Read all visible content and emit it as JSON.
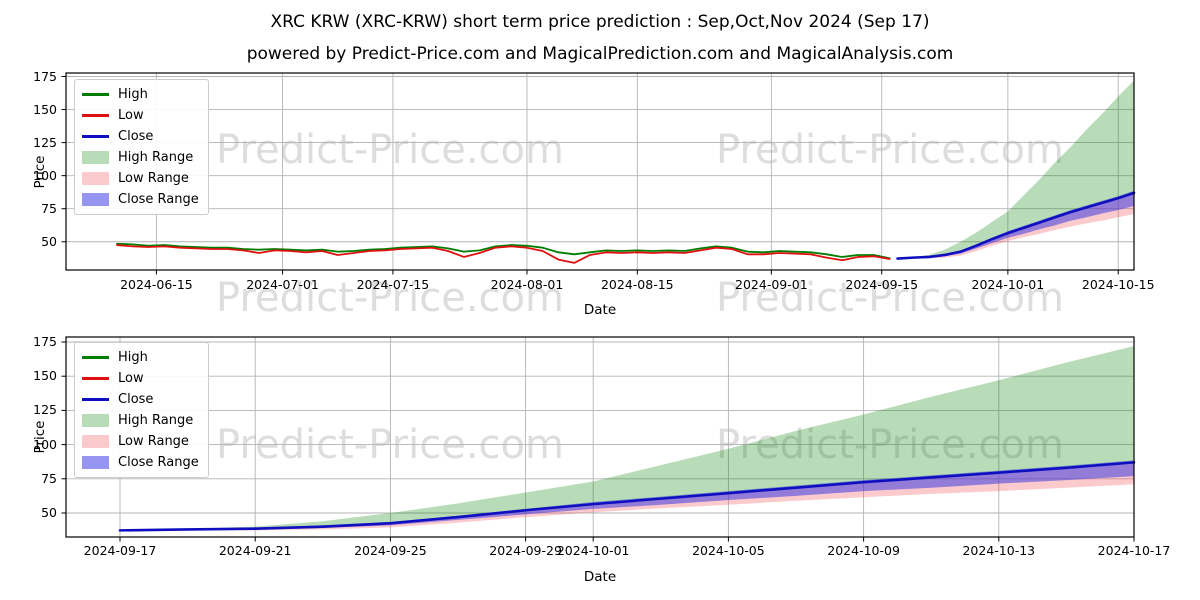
{
  "header": {
    "title": "XRC KRW (XRC-KRW) short term price prediction : Sep,Oct,Nov 2024 (Sep 17)",
    "subtitle": "powered by Predict-Price.com and MagicalPrediction.com and MagicalAnalysis.com"
  },
  "watermark": {
    "text": "Predict-Price.com"
  },
  "colors": {
    "high_line": "#007d00",
    "low_line": "#e01010",
    "close_line": "#0f0fc0",
    "high_range_fill": "rgba(0,128,0,0.28)",
    "low_range_fill": "rgba(243,80,90,0.30)",
    "close_range_fill": "rgba(43,43,228,0.50)",
    "grid": "#b3b3b3",
    "spine": "#000000",
    "background": "#ffffff"
  },
  "chart_data": [
    {
      "type": "line",
      "title": "",
      "xlabel": "Date",
      "ylabel": "Price",
      "grid": true,
      "legend_position": "upper left",
      "yticks": [
        50,
        75,
        100,
        125,
        150,
        175
      ],
      "ylim": [
        28.6,
        177.6
      ],
      "xticks": {
        "labels": [
          "2024-06-15",
          "2024-07-01",
          "2024-07-15",
          "2024-08-01",
          "2024-08-15",
          "2024-09-01",
          "2024-09-15",
          "2024-10-01",
          "2024-10-15"
        ],
        "pos": [
          5,
          21,
          35,
          52,
          66,
          83,
          97,
          113,
          127
        ]
      },
      "x_unit": "days since 2024-06-10",
      "series": [
        {
          "name": "High",
          "color_key": "high_line",
          "width": 1.8,
          "x": [
            0,
            2,
            4,
            6,
            8,
            10,
            12,
            14,
            16,
            18,
            20,
            22,
            24,
            26,
            28,
            30,
            32,
            34,
            36,
            38,
            40,
            42,
            44,
            46,
            48,
            50,
            52,
            54,
            56,
            58,
            60,
            62,
            64,
            66,
            68,
            70,
            72,
            74,
            76,
            78,
            80,
            82,
            84,
            86,
            88,
            90,
            92,
            94,
            96,
            98
          ],
          "y": [
            48.5,
            48.0,
            47.0,
            47.5,
            46.5,
            46.0,
            45.5,
            45.5,
            44.5,
            44.0,
            44.5,
            44.0,
            43.5,
            44.0,
            42.5,
            43.0,
            44.0,
            44.5,
            45.5,
            46.0,
            46.5,
            45.0,
            42.5,
            43.5,
            46.5,
            47.5,
            47.0,
            45.5,
            42.0,
            40.5,
            42.0,
            43.5,
            43.0,
            43.5,
            43.0,
            43.5,
            43.0,
            45.0,
            46.5,
            45.5,
            42.5,
            42.0,
            43.0,
            42.5,
            42.0,
            40.5,
            38.5,
            40.0,
            40.0,
            37.5
          ]
        },
        {
          "name": "Low",
          "color_key": "low_line",
          "width": 1.8,
          "x": [
            0,
            2,
            4,
            6,
            8,
            10,
            12,
            14,
            16,
            18,
            20,
            22,
            24,
            26,
            28,
            30,
            32,
            34,
            36,
            38,
            40,
            42,
            44,
            46,
            48,
            50,
            52,
            54,
            56,
            58,
            60,
            62,
            64,
            66,
            68,
            70,
            72,
            74,
            76,
            78,
            80,
            82,
            84,
            86,
            88,
            90,
            92,
            94,
            96,
            98
          ],
          "y": [
            47.5,
            46.5,
            46.0,
            46.5,
            45.5,
            45.0,
            44.5,
            44.5,
            43.5,
            41.5,
            43.5,
            43.0,
            42.0,
            43.0,
            40.0,
            41.5,
            43.0,
            43.5,
            44.5,
            45.0,
            45.5,
            43.0,
            38.5,
            41.5,
            45.5,
            46.5,
            45.5,
            43.0,
            36.5,
            34.0,
            40.0,
            42.0,
            41.5,
            42.0,
            41.5,
            42.0,
            41.5,
            43.5,
            45.5,
            44.5,
            40.5,
            40.5,
            41.5,
            41.0,
            40.5,
            38.0,
            36.0,
            38.5,
            39.0,
            37.0
          ]
        },
        {
          "name": "Close",
          "color_key": "close_line",
          "width": 2.6,
          "x": [
            99,
            101,
            103,
            105,
            107,
            109,
            111,
            113,
            115,
            117,
            119,
            121,
            123,
            125,
            127,
            129
          ],
          "y": [
            37.3,
            38.0,
            38.5,
            40.0,
            42.5,
            47.0,
            52.0,
            56.5,
            60.5,
            64.5,
            68.5,
            72.5,
            76.0,
            79.5,
            83.0,
            87.0
          ]
        }
      ],
      "bands": [
        {
          "name": "High Range",
          "fill_key": "high_range_fill",
          "x": [
            99,
            101,
            103,
            105,
            107,
            109,
            111,
            113,
            115,
            117,
            119,
            121,
            123,
            125,
            127,
            129
          ],
          "top": [
            37.3,
            38.5,
            40.0,
            44.0,
            50.0,
            57.0,
            65.0,
            73.0,
            85.0,
            97.0,
            110.0,
            122.0,
            135.0,
            147.0,
            160.0,
            172.0
          ],
          "bottom": [
            37.3,
            38.0,
            38.5,
            40.0,
            42.5,
            47.0,
            52.0,
            56.5,
            60.5,
            64.5,
            68.5,
            72.5,
            76.0,
            79.5,
            83.0,
            87.0
          ]
        },
        {
          "name": "Low Range",
          "fill_key": "low_range_fill",
          "x": [
            99,
            101,
            103,
            105,
            107,
            109,
            111,
            113,
            115,
            117,
            119,
            121,
            123,
            125,
            127,
            129
          ],
          "top": [
            37.3,
            38.0,
            38.5,
            40.0,
            42.5,
            47.0,
            52.0,
            56.5,
            60.5,
            64.5,
            68.5,
            72.5,
            76.0,
            79.5,
            83.0,
            87.0
          ],
          "bottom": [
            37.3,
            37.5,
            37.3,
            38.0,
            39.5,
            43.0,
            47.0,
            50.5,
            53.5,
            56.0,
            59.0,
            61.5,
            64.0,
            66.0,
            68.5,
            71.0
          ]
        },
        {
          "name": "Close Range",
          "fill_key": "close_range_fill",
          "x": [
            99,
            101,
            103,
            105,
            107,
            109,
            111,
            113,
            115,
            117,
            119,
            121,
            123,
            125,
            127,
            129
          ],
          "top": [
            37.3,
            38.2,
            39.0,
            41.0,
            43.5,
            48.0,
            53.0,
            58.0,
            62.0,
            66.0,
            70.0,
            74.0,
            77.5,
            81.0,
            84.5,
            88.5
          ],
          "bottom": [
            37.3,
            37.7,
            37.8,
            39.0,
            41.0,
            45.0,
            49.0,
            53.0,
            56.0,
            59.5,
            62.5,
            66.0,
            68.5,
            71.5,
            74.0,
            77.0
          ]
        }
      ],
      "legend": [
        {
          "label": "High",
          "type": "line",
          "color_key": "high_line"
        },
        {
          "label": "Low",
          "type": "line",
          "color_key": "low_line"
        },
        {
          "label": "Close",
          "type": "line",
          "color_key": "close_line"
        },
        {
          "label": "High Range",
          "type": "patch",
          "color_key": "high_range_fill"
        },
        {
          "label": "Low Range",
          "type": "patch",
          "color_key": "low_range_fill"
        },
        {
          "label": "Close Range",
          "type": "patch",
          "color_key": "close_range_fill"
        }
      ]
    },
    {
      "type": "line",
      "title": "",
      "xlabel": "Date",
      "ylabel": "Price",
      "grid": true,
      "legend_position": "upper left",
      "yticks": [
        50,
        75,
        100,
        125,
        150,
        175
      ],
      "ylim": [
        32.5,
        178.7
      ],
      "xticks": {
        "labels": [
          "2024-09-17",
          "2024-09-21",
          "2024-09-25",
          "2024-09-29",
          "2024-10-01",
          "2024-10-05",
          "2024-10-09",
          "2024-10-13",
          "2024-10-17"
        ],
        "pos": [
          0,
          4,
          8,
          12,
          14,
          18,
          22,
          26,
          30
        ]
      },
      "x_unit": "days since 2024-09-17",
      "series": [
        {
          "name": "Close",
          "color_key": "close_line",
          "width": 2.6,
          "x": [
            0,
            2,
            4,
            6,
            8,
            10,
            12,
            14,
            16,
            18,
            20,
            22,
            24,
            26,
            28,
            30
          ],
          "y": [
            37.3,
            38.0,
            38.5,
            40.0,
            42.5,
            47.0,
            52.0,
            56.5,
            60.5,
            64.5,
            68.5,
            72.5,
            76.0,
            79.5,
            83.0,
            87.0
          ]
        }
      ],
      "bands": [
        {
          "name": "High Range",
          "fill_key": "high_range_fill",
          "x": [
            0,
            2,
            4,
            6,
            8,
            10,
            12,
            14,
            16,
            18,
            20,
            22,
            24,
            26,
            28,
            30
          ],
          "top": [
            37.3,
            38.5,
            40.0,
            44.0,
            50.0,
            57.0,
            65.0,
            73.0,
            85.0,
            97.0,
            110.0,
            122.0,
            135.0,
            147.0,
            160.0,
            172.0
          ],
          "bottom": [
            37.3,
            38.0,
            38.5,
            40.0,
            42.5,
            47.0,
            52.0,
            56.5,
            60.5,
            64.5,
            68.5,
            72.5,
            76.0,
            79.5,
            83.0,
            87.0
          ]
        },
        {
          "name": "Low Range",
          "fill_key": "low_range_fill",
          "x": [
            0,
            2,
            4,
            6,
            8,
            10,
            12,
            14,
            16,
            18,
            20,
            22,
            24,
            26,
            28,
            30
          ],
          "top": [
            37.3,
            38.0,
            38.5,
            40.0,
            42.5,
            47.0,
            52.0,
            56.5,
            60.5,
            64.5,
            68.5,
            72.5,
            76.0,
            79.5,
            83.0,
            87.0
          ],
          "bottom": [
            37.3,
            37.5,
            37.3,
            38.0,
            39.5,
            43.0,
            47.0,
            50.5,
            53.5,
            56.0,
            59.0,
            61.5,
            64.0,
            66.0,
            68.5,
            71.0
          ]
        },
        {
          "name": "Close Range",
          "fill_key": "close_range_fill",
          "x": [
            0,
            2,
            4,
            6,
            8,
            10,
            12,
            14,
            16,
            18,
            20,
            22,
            24,
            26,
            28,
            30
          ],
          "top": [
            37.3,
            38.2,
            39.0,
            41.0,
            43.5,
            48.0,
            53.0,
            58.0,
            62.0,
            66.0,
            70.0,
            74.0,
            77.5,
            81.0,
            84.5,
            88.5
          ],
          "bottom": [
            37.3,
            37.7,
            37.8,
            39.0,
            41.0,
            45.0,
            49.0,
            53.0,
            56.0,
            59.5,
            62.5,
            66.0,
            68.5,
            71.5,
            74.0,
            77.0
          ]
        }
      ],
      "legend": [
        {
          "label": "High",
          "type": "line",
          "color_key": "high_line"
        },
        {
          "label": "Low",
          "type": "line",
          "color_key": "low_line"
        },
        {
          "label": "Close",
          "type": "line",
          "color_key": "close_line"
        },
        {
          "label": "High Range",
          "type": "patch",
          "color_key": "high_range_fill"
        },
        {
          "label": "Low Range",
          "type": "patch",
          "color_key": "low_range_fill"
        },
        {
          "label": "Close Range",
          "type": "patch",
          "color_key": "close_range_fill"
        }
      ]
    }
  ]
}
